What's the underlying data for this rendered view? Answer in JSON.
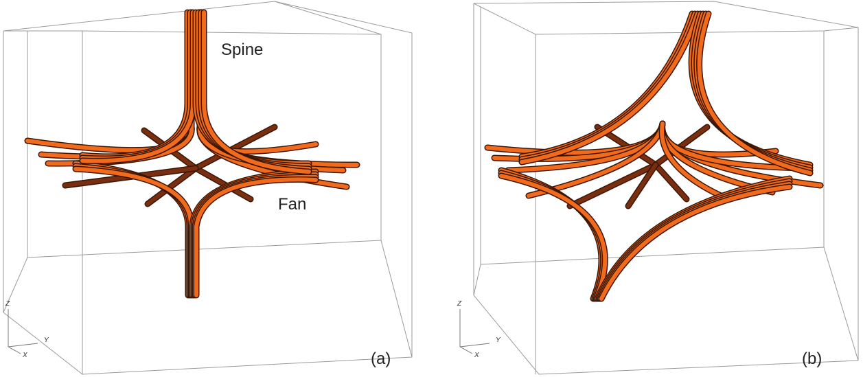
{
  "panels": [
    {
      "label": "(a)",
      "annotations": [
        "Spine",
        "Fan"
      ],
      "axes": [
        "Z",
        "Y",
        "X"
      ]
    },
    {
      "label": "(b)",
      "annotations": [],
      "axes": [
        "Z",
        "Y",
        "X"
      ]
    }
  ]
}
